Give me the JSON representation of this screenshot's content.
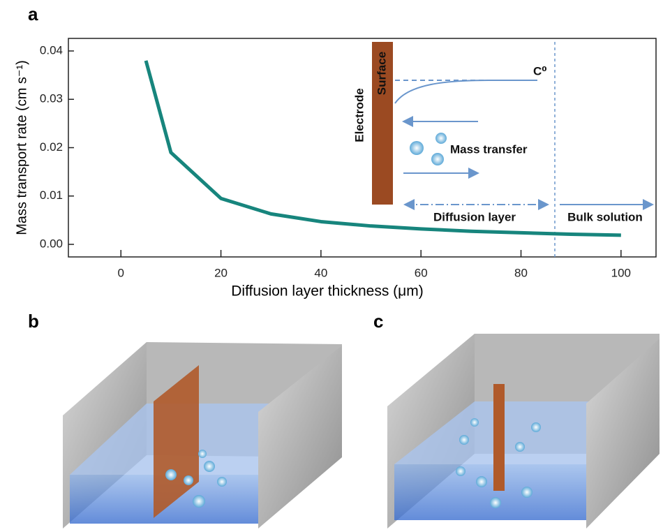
{
  "chart_data": {
    "type": "line",
    "panel": "a",
    "xlabel": "Diffusion layer thickness (μm)",
    "ylabel": "Mass transport rate (cm s⁻¹)",
    "x": [
      5,
      10,
      20,
      30,
      40,
      50,
      60,
      70,
      80,
      90,
      100
    ],
    "values": [
      0.038,
      0.019,
      0.0095,
      0.0063,
      0.0047,
      0.0038,
      0.0032,
      0.0027,
      0.0024,
      0.0021,
      0.0019
    ],
    "color": "#17857d",
    "xlim": [
      -10.5,
      107
    ],
    "xticks": [
      0,
      20,
      40,
      60,
      80,
      100
    ],
    "ylim": [
      -0.0026,
      0.0426
    ],
    "yticks": [
      {
        "value": 0,
        "label": "0.00"
      },
      {
        "value": 0.01,
        "label": "0.01"
      },
      {
        "value": 0.02,
        "label": "0.02"
      },
      {
        "value": 0.03,
        "label": "0.03"
      },
      {
        "value": 0.04,
        "label": "0.04"
      }
    ],
    "annotations": [
      "Electrode",
      "Surface",
      "C⁰",
      "Mass transfer",
      "Diffusion layer",
      "Bulk solution"
    ]
  },
  "panel_labels": [
    "b",
    "c"
  ]
}
